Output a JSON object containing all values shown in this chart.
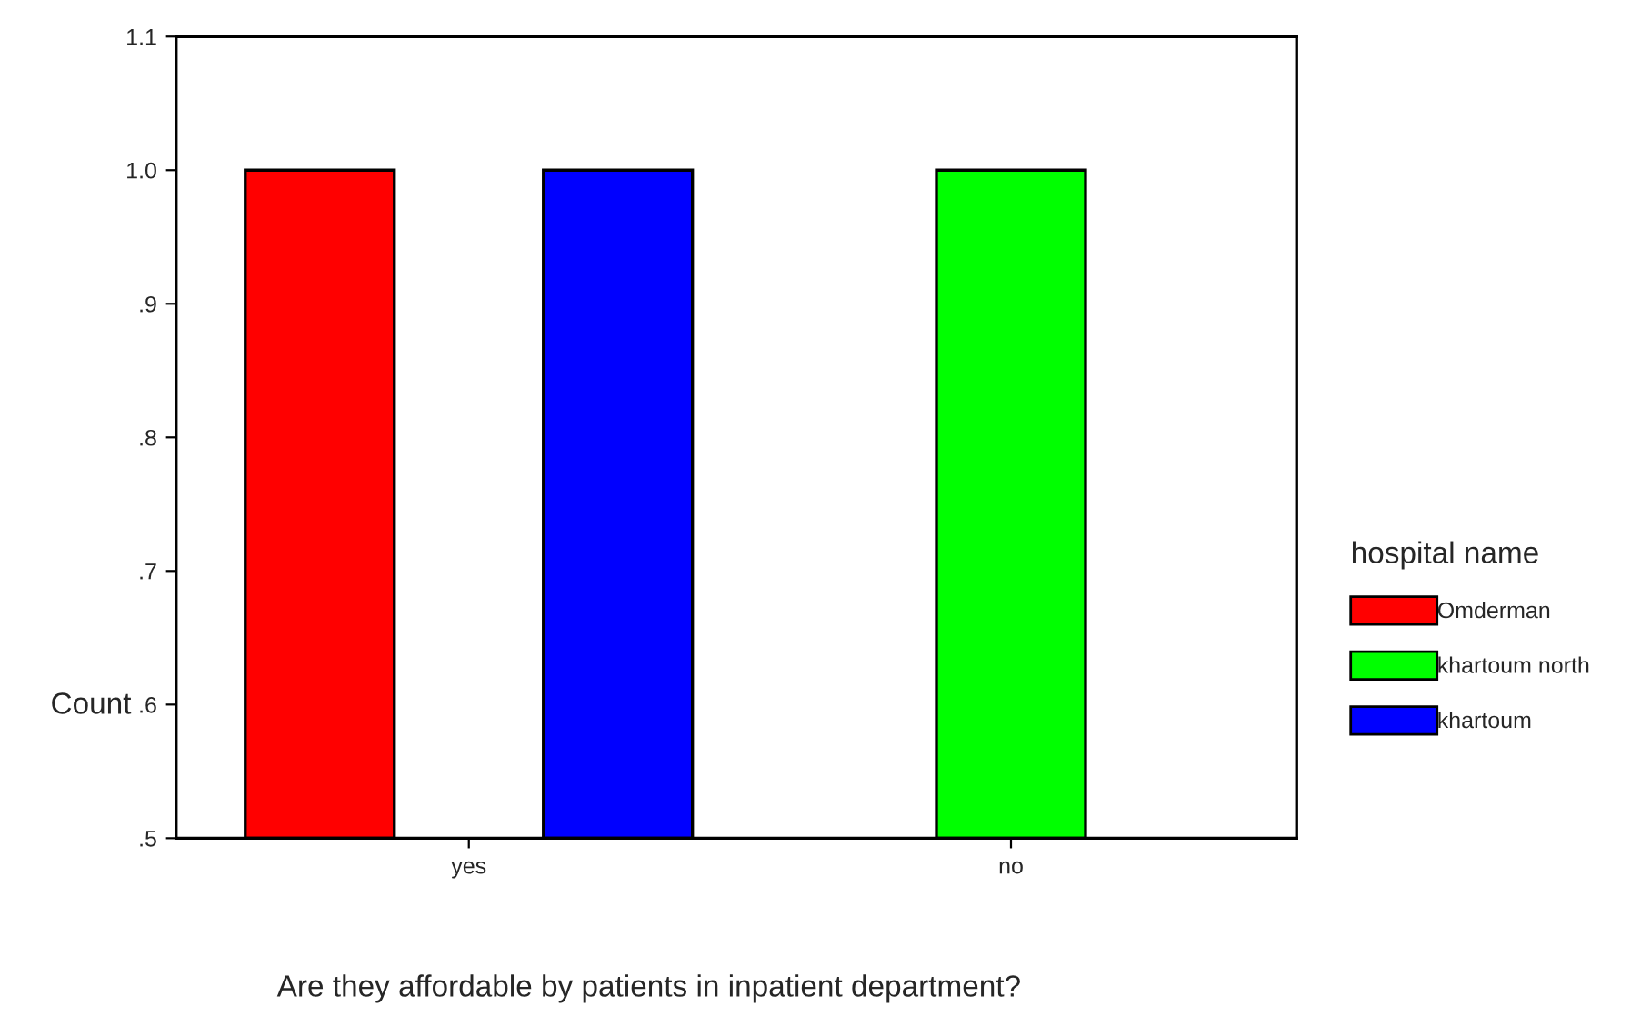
{
  "chart_data": {
    "type": "bar",
    "xlabel": "Are they affordable by patients in inpatient department?",
    "ylabel": "Count",
    "legend_title": "hospital name",
    "categories": [
      "yes",
      "no"
    ],
    "series": [
      {
        "name": "Omderman",
        "color": "#ff0000",
        "values": [
          1.0,
          null
        ]
      },
      {
        "name": "khartoum north",
        "color": "#00ff00",
        "values": [
          null,
          1.0
        ]
      },
      {
        "name": "khartoum",
        "color": "#0000ff",
        "values": [
          1.0,
          null
        ]
      }
    ],
    "ylim": [
      0.5,
      1.1
    ],
    "yticks": [
      {
        "value": 0.5,
        "label": ".5"
      },
      {
        "value": 0.6,
        "label": ".6"
      },
      {
        "value": 0.7,
        "label": ".7"
      },
      {
        "value": 0.8,
        "label": ".8"
      },
      {
        "value": 0.9,
        "label": ".9"
      },
      {
        "value": 1.0,
        "label": "1.0"
      },
      {
        "value": 1.1,
        "label": "1.1"
      }
    ],
    "grid": false,
    "legend": "right"
  }
}
